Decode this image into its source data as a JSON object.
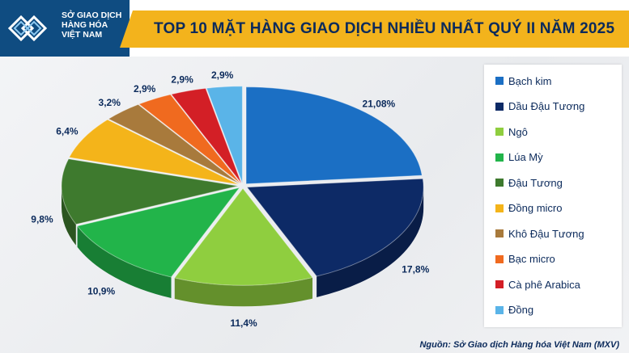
{
  "header": {
    "logo_text": "SỞ GIAO DỊCH\nHÀNG HÓA\nVIỆT NAM",
    "logo_color": "#0f4c81",
    "band_color": "#f3b31c"
  },
  "chart_data": {
    "type": "pie",
    "title": "TOP 10 MẶT HÀNG GIAO DỊCH NHIỀU NHẤT QUÝ II NĂM 2025",
    "categories": [
      "Bạch kim",
      "Dầu Đậu Tương",
      "Ngô",
      "Lúa Mỳ",
      "Đậu Tương",
      "Đồng micro",
      "Khô Đậu Tương",
      "Bạc micro",
      "Cà phê Arabica",
      "Đồng"
    ],
    "values": [
      21.08,
      17.8,
      11.4,
      10.9,
      9.8,
      6.4,
      3.2,
      2.9,
      2.9,
      2.9
    ],
    "labels": [
      "21,08%",
      "17,8%",
      "11,4%",
      "10,9%",
      "9,8%",
      "6,4%",
      "3,2%",
      "2,9%",
      "2,9%",
      "2,9%"
    ],
    "colors": [
      "#1b6fc4",
      "#0d2a66",
      "#8fce3f",
      "#22b44a",
      "#3e7a2e",
      "#f4b41a",
      "#a87a3c",
      "#f06a1f",
      "#d31f26",
      "#5ab4e8"
    ],
    "legend_position": "right",
    "style": "3d-exploded",
    "source": "Nguồn: Sở Giao dịch Hàng hóa Việt Nam (MXV)"
  }
}
